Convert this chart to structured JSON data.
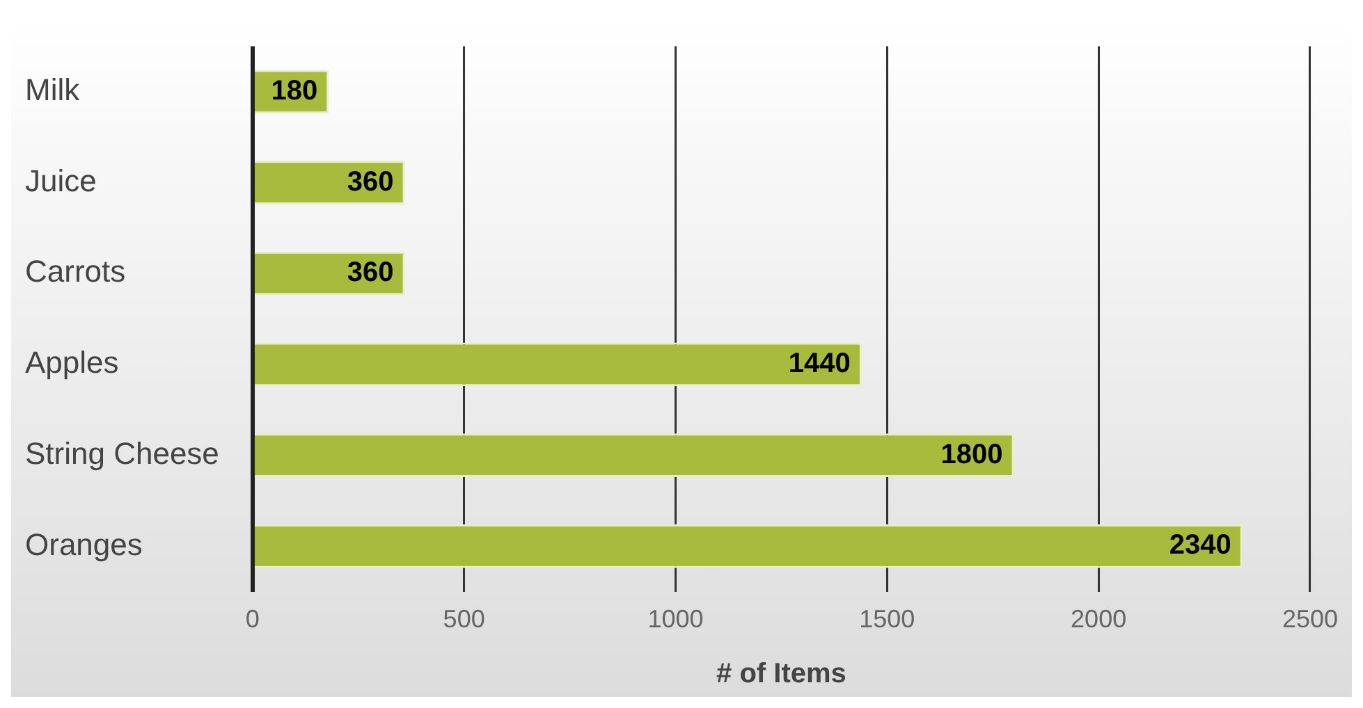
{
  "chart_data": {
    "type": "bar",
    "orientation": "horizontal",
    "xlabel": "# of Items",
    "categories": [
      "Milk",
      "Juice",
      "Carrots",
      "Apples",
      "String Cheese",
      "Oranges"
    ],
    "values": [
      180,
      360,
      360,
      1440,
      1800,
      2340
    ],
    "color": "#a8bb3c",
    "xlim": [
      0,
      2500
    ],
    "xticks": [
      0,
      500,
      1000,
      1500,
      2000,
      2500
    ],
    "grid": "x",
    "data_labels": true
  }
}
